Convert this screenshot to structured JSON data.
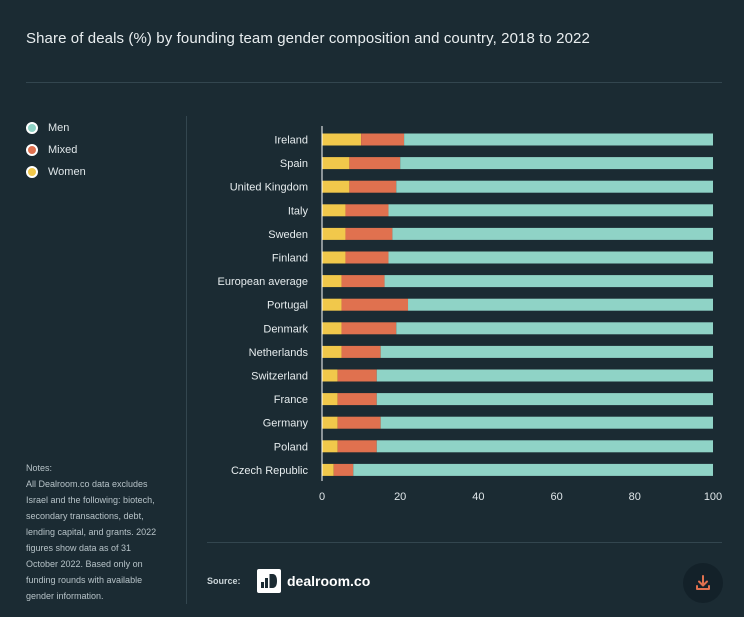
{
  "title": "Share of deals (%) by founding team gender composition and country, 2018 to 2022",
  "legend": [
    {
      "label": "Men",
      "color": "#8fd3c6"
    },
    {
      "label": "Mixed",
      "color": "#e0714f"
    },
    {
      "label": "Women",
      "color": "#f1c84b"
    }
  ],
  "notes": {
    "heading": "Notes:",
    "lines": [
      "All Dealroom.co data excludes",
      "Israel and the following: biotech,",
      "secondary transactions, debt,",
      "lending capital, and grants. 2022",
      "figures show data as of 31",
      "October 2022. Based only on",
      "funding rounds with available",
      "gender information."
    ]
  },
  "source": {
    "label": "Source:",
    "brand": "dealroom.co",
    "logo_glyph": "ıD"
  },
  "icons": {
    "download": "download-icon",
    "logo": "dealroom-logo-icon"
  },
  "chart_data": {
    "type": "bar",
    "orientation": "horizontal",
    "stacked": true,
    "categories": [
      "Ireland",
      "Spain",
      "United Kingdom",
      "Italy",
      "Sweden",
      "Finland",
      "European average",
      "Portugal",
      "Denmark",
      "Netherlands",
      "Switzerland",
      "France",
      "Germany",
      "Poland",
      "Czech Republic"
    ],
    "series": [
      {
        "name": "Women",
        "color": "#f1c84b",
        "values": [
          10,
          7,
          7,
          6,
          6,
          6,
          5,
          5,
          5,
          5,
          4,
          4,
          4,
          4,
          3
        ]
      },
      {
        "name": "Mixed",
        "color": "#e0714f",
        "values": [
          11,
          13,
          12,
          11,
          12,
          11,
          11,
          17,
          14,
          10,
          10,
          10,
          11,
          10,
          5
        ]
      },
      {
        "name": "Men",
        "color": "#8fd3c6",
        "values": [
          79,
          80,
          81,
          83,
          82,
          83,
          84,
          78,
          81,
          85,
          86,
          86,
          85,
          86,
          92
        ]
      }
    ],
    "xlim": [
      0,
      100
    ],
    "xticks": [
      "0",
      "20",
      "40",
      "60",
      "80",
      "100"
    ],
    "grid": false,
    "legend_position": "top-left"
  }
}
